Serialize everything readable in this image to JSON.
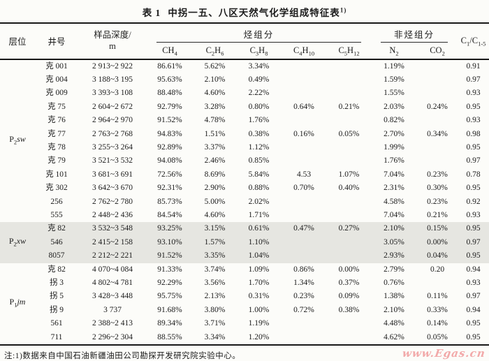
{
  "title": {
    "label": "表 1",
    "text": "中拐一五、八区天然气化学组成特征表",
    "superscript": "1)"
  },
  "table": {
    "header": {
      "horizon": "层位",
      "well": "井号",
      "depth_line1": "样品深度/",
      "depth_line2": "m",
      "hydrocarbon_group": "烃组分",
      "nonhydrocarbon_group": "非烃组分",
      "formulas": {
        "ch4": [
          [
            "CH",
            "4"
          ]
        ],
        "c2h6": [
          [
            "C",
            "2"
          ],
          [
            "H",
            "6"
          ]
        ],
        "c3h8": [
          [
            "C",
            "3"
          ],
          [
            "H",
            "8"
          ]
        ],
        "c4h10": [
          [
            "C",
            "4"
          ],
          [
            "H",
            "10"
          ]
        ],
        "c5h12": [
          [
            "C",
            "5"
          ],
          [
            "H",
            "12"
          ]
        ],
        "n2": [
          [
            "N",
            "2"
          ]
        ],
        "co2": [
          [
            "CO",
            "2"
          ]
        ],
        "ratio": [
          [
            "C",
            "1"
          ],
          [
            "/C",
            "1-5"
          ]
        ]
      }
    },
    "groups": [
      {
        "horizon": {
          "base": "P",
          "sub": "2",
          "suffix": "sw"
        },
        "shaded": false,
        "rows": [
          {
            "well": "克 001",
            "depth": "2 913~2 922",
            "ch4": "86.61%",
            "c2h6": "5.62%",
            "c3h8": "3.34%",
            "c4h10": "",
            "c5h12": "",
            "n2": "1.19%",
            "co2": "",
            "ratio": "0.91"
          },
          {
            "well": "克 004",
            "depth": "3 188~3 195",
            "ch4": "95.63%",
            "c2h6": "2.10%",
            "c3h8": "0.49%",
            "c4h10": "",
            "c5h12": "",
            "n2": "1.59%",
            "co2": "",
            "ratio": "0.97"
          },
          {
            "well": "克 009",
            "depth": "3 393~3 108",
            "ch4": "88.48%",
            "c2h6": "4.60%",
            "c3h8": "2.22%",
            "c4h10": "",
            "c5h12": "",
            "n2": "1.55%",
            "co2": "",
            "ratio": "0.93"
          },
          {
            "well": "克 75",
            "depth": "2 604~2 672",
            "ch4": "92.79%",
            "c2h6": "3.28%",
            "c3h8": "0.80%",
            "c4h10": "0.64%",
            "c5h12": "0.21%",
            "n2": "2.03%",
            "co2": "0.24%",
            "ratio": "0.95"
          },
          {
            "well": "克 76",
            "depth": "2 964~2 970",
            "ch4": "91.52%",
            "c2h6": "4.78%",
            "c3h8": "1.76%",
            "c4h10": "",
            "c5h12": "",
            "n2": "0.82%",
            "co2": "",
            "ratio": "0.93"
          },
          {
            "well": "克 77",
            "depth": "2 763~2 768",
            "ch4": "94.83%",
            "c2h6": "1.51%",
            "c3h8": "0.38%",
            "c4h10": "0.16%",
            "c5h12": "0.05%",
            "n2": "2.70%",
            "co2": "0.34%",
            "ratio": "0.98"
          },
          {
            "well": "克 78",
            "depth": "3 255~3 264",
            "ch4": "92.89%",
            "c2h6": "3.37%",
            "c3h8": "1.12%",
            "c4h10": "",
            "c5h12": "",
            "n2": "1.99%",
            "co2": "",
            "ratio": "0.95"
          },
          {
            "well": "克 79",
            "depth": "3 521~3 532",
            "ch4": "94.08%",
            "c2h6": "2.46%",
            "c3h8": "0.85%",
            "c4h10": "",
            "c5h12": "",
            "n2": "1.76%",
            "co2": "",
            "ratio": "0.97"
          },
          {
            "well": "克 101",
            "depth": "3 681~3 691",
            "ch4": "72.56%",
            "c2h6": "8.69%",
            "c3h8": "5.84%",
            "c4h10": "4.53",
            "c5h12": "1.07%",
            "n2": "7.04%",
            "co2": "0.23%",
            "ratio": "0.78"
          },
          {
            "well": "克 302",
            "depth": "3 642~3 670",
            "ch4": "92.31%",
            "c2h6": "2.90%",
            "c3h8": "0.88%",
            "c4h10": "0.70%",
            "c5h12": "0.40%",
            "n2": "2.31%",
            "co2": "0.30%",
            "ratio": "0.95"
          },
          {
            "well": "256",
            "depth": "2 762~2 780",
            "ch4": "85.73%",
            "c2h6": "5.00%",
            "c3h8": "2.02%",
            "c4h10": "",
            "c5h12": "",
            "n2": "4.58%",
            "co2": "0.23%",
            "ratio": "0.92"
          },
          {
            "well": "555",
            "depth": "2 448~2 436",
            "ch4": "84.54%",
            "c2h6": "4.60%",
            "c3h8": "1.71%",
            "c4h10": "",
            "c5h12": "",
            "n2": "7.04%",
            "co2": "0.21%",
            "ratio": "0.93"
          }
        ]
      },
      {
        "horizon": {
          "base": "P",
          "sub": "2",
          "suffix": "xw"
        },
        "shaded": true,
        "rows": [
          {
            "well": "克 82",
            "depth": "3 532~3 548",
            "ch4": "93.25%",
            "c2h6": "3.15%",
            "c3h8": "0.61%",
            "c4h10": "0.47%",
            "c5h12": "0.27%",
            "n2": "2.10%",
            "co2": "0.15%",
            "ratio": "0.95"
          },
          {
            "well": "546",
            "depth": "2 415~2 158",
            "ch4": "93.10%",
            "c2h6": "1.57%",
            "c3h8": "1.10%",
            "c4h10": "",
            "c5h12": "",
            "n2": "3.05%",
            "co2": "0.00%",
            "ratio": "0.97"
          },
          {
            "well": "8057",
            "depth": "2 212~2 221",
            "ch4": "91.52%",
            "c2h6": "3.35%",
            "c3h8": "1.04%",
            "c4h10": "",
            "c5h12": "",
            "n2": "2.93%",
            "co2": "0.04%",
            "ratio": "0.95"
          }
        ]
      },
      {
        "horizon": {
          "base": "P",
          "sub": "1",
          "suffix": "jm"
        },
        "shaded": false,
        "rows": [
          {
            "well": "克 82",
            "depth": "4 070~4 084",
            "ch4": "91.33%",
            "c2h6": "3.74%",
            "c3h8": "1.09%",
            "c4h10": "0.86%",
            "c5h12": "0.00%",
            "n2": "2.79%",
            "co2": "0.20",
            "ratio": "0.94"
          },
          {
            "well": "拐 3",
            "depth": "4 802~4 781",
            "ch4": "92.29%",
            "c2h6": "3.56%",
            "c3h8": "1.70%",
            "c4h10": "1.34%",
            "c5h12": "0.37%",
            "n2": "0.76%",
            "co2": "",
            "ratio": "0.93"
          },
          {
            "well": "拐 5",
            "depth": "3 428~3 448",
            "ch4": "95.75%",
            "c2h6": "2.13%",
            "c3h8": "0.31%",
            "c4h10": "0.23%",
            "c5h12": "0.09%",
            "n2": "1.38%",
            "co2": "0.11%",
            "ratio": "0.97"
          },
          {
            "well": "拐 9",
            "depth": "3 737",
            "ch4": "91.68%",
            "c2h6": "3.80%",
            "c3h8": "1.00%",
            "c4h10": "0.72%",
            "c5h12": "0.38%",
            "n2": "2.10%",
            "co2": "0.33%",
            "ratio": "0.94"
          },
          {
            "well": "561",
            "depth": "2 388~2 413",
            "ch4": "89.34%",
            "c2h6": "3.71%",
            "c3h8": "1.19%",
            "c4h10": "",
            "c5h12": "",
            "n2": "4.48%",
            "co2": "0.14%",
            "ratio": "0.95"
          },
          {
            "well": "711",
            "depth": "2 296~2 304",
            "ch4": "88.55%",
            "c2h6": "3.34%",
            "c3h8": "1.20%",
            "c4h10": "",
            "c5h12": "",
            "n2": "4.62%",
            "co2": "0.05%",
            "ratio": "0.95"
          }
        ]
      }
    ]
  },
  "footnote": "注:1)数据来自中国石油新疆油田公司勘探开发研究院实验中心。",
  "watermark": "www.Egas.cn",
  "colors": {
    "shaded_row": "#e6e6e1",
    "border": "#181818",
    "watermark_pink": "#f2a9a9",
    "paper": "#fcfcf9"
  }
}
